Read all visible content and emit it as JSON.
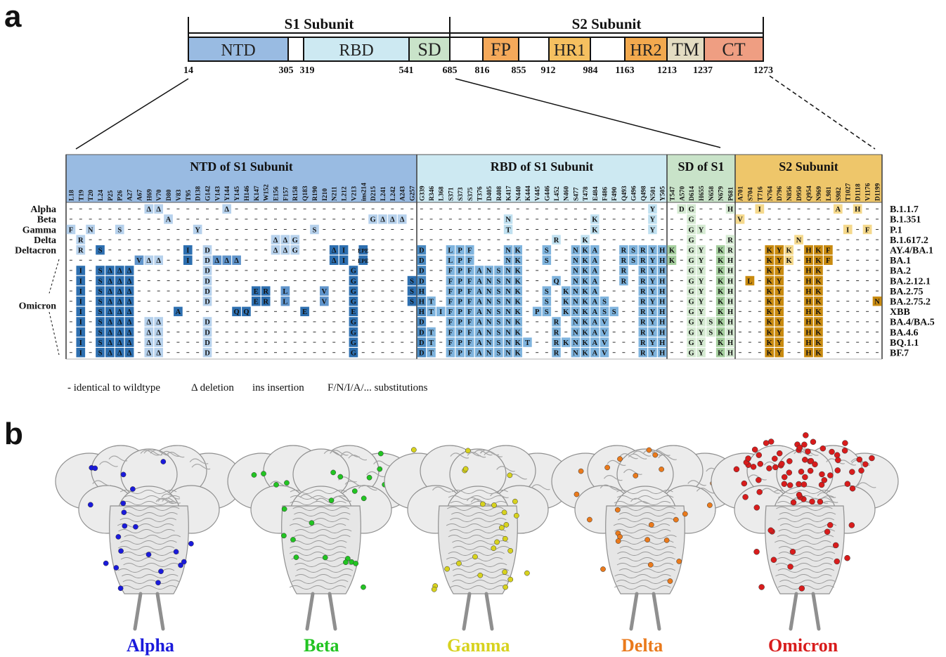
{
  "panel_a": {
    "letter": "a",
    "subunits": [
      {
        "label": "S1 Subunit"
      },
      {
        "label": "S2 Subunit"
      }
    ],
    "domains": [
      {
        "label": "NTD",
        "start": 14,
        "end": 305,
        "color": "#99bbe2"
      },
      {
        "label": "RBD",
        "start": 319,
        "end": 541,
        "color": "#cde9f2"
      },
      {
        "label": "SD",
        "start": 541,
        "end": 685,
        "color": "#c9e3c9"
      },
      {
        "label": "FP",
        "start": 816,
        "end": 855,
        "color": "#f5a95a"
      },
      {
        "label": "HR1",
        "start": 912,
        "end": 984,
        "color": "#f5c060"
      },
      {
        "label": "HR2",
        "start": 1163,
        "end": 1213,
        "color": "#f2a94e"
      },
      {
        "label": "TM",
        "start": 1213,
        "end": 1237,
        "color": "#e3dcc2"
      },
      {
        "label": "CT",
        "start": 1237,
        "end": 1273,
        "color": "#ef9e82"
      }
    ],
    "ticks": [
      "14",
      "305",
      "319",
      "541",
      "685",
      "816",
      "855",
      "912",
      "984",
      "1163",
      "1213",
      "1237",
      "1273"
    ],
    "table_sections": [
      {
        "label": "NTD of S1 Subunit",
        "color": "#99bbe2",
        "strong": "#2d6fb0",
        "medium": "#5f94cb",
        "light": "#b6d1ec"
      },
      {
        "label": "RBD of S1 Subunit",
        "color": "#cde9f2",
        "strong": "#4a8ac2",
        "medium": "#7fb4de",
        "light": "#bfe0f0"
      },
      {
        "label": "SD of S1",
        "color": "#c9e3c9",
        "strong": "#71b46a",
        "medium": "#a5cf9e",
        "light": "#d5ead2"
      },
      {
        "label": "S2 Subunit",
        "color": "#eec66a",
        "strong": "#c98b10",
        "medium": "#dfa830",
        "light": "#f5d98c"
      }
    ],
    "positions": {
      "ntd": [
        "L18",
        "T19",
        "T20",
        "L24",
        "P25",
        "P26",
        "A27",
        "A67",
        "H69",
        "V70",
        "D80",
        "V83",
        "T95",
        "D138",
        "G142",
        "V143",
        "Y144",
        "Y145",
        "H146",
        "K147",
        "W152",
        "E156",
        "F157",
        "R158",
        "Q183",
        "R190",
        "I210",
        "N211",
        "L212",
        "V213",
        "ins214",
        "D215",
        "L241",
        "L242",
        "A243",
        "G257"
      ],
      "rbd": [
        "G339",
        "R346",
        "L368",
        "S371",
        "S373",
        "S375",
        "T376",
        "D405",
        "R408",
        "K417",
        "N440",
        "K444",
        "V445",
        "G446",
        "L452",
        "N460",
        "S477",
        "T478",
        "E484",
        "F486",
        "F490",
        "Q493",
        "G496",
        "Q498",
        "N501",
        "Y505"
      ],
      "sd": [
        "T547",
        "A570",
        "D614",
        "H655",
        "N658",
        "N679",
        "P681"
      ],
      "s2": [
        "A701",
        "S704",
        "T716",
        "N764",
        "D796",
        "N856",
        "D950",
        "Q954",
        "N969",
        "L981",
        "S982",
        "T1027",
        "D1118",
        "V1176",
        "D1199"
      ]
    },
    "groups": [
      {
        "label": "Alpha",
        "row": 0
      },
      {
        "label": "Beta",
        "row": 1
      },
      {
        "label": "Gamma",
        "row": 2
      },
      {
        "label": "Delta",
        "row": 3
      },
      {
        "label": "Deltacron",
        "row": 4
      },
      {
        "label": "Omicron",
        "row": 9
      }
    ],
    "variants": [
      {
        "name": "B.1.1.7",
        "muts": [
          "H69:Δ:l",
          "V70:Δ:l",
          "Y144:Δ:l",
          "N501:Y:l",
          "A570:D:l",
          "D614:G:l",
          "P681:H:l",
          "T716:I:l",
          "S982:A:l",
          "D1118:H:l"
        ]
      },
      {
        "name": "B.1.351",
        "muts": [
          "D80:A:l",
          "D215:G:l",
          "L241:Δ:l",
          "L242:Δ:l",
          "A243:Δ:l",
          "K417:N:l",
          "E484:K:l",
          "N501:Y:l",
          "D614:G:l",
          "A701:V:l"
        ]
      },
      {
        "name": "P.1",
        "muts": [
          "L18:F:l",
          "T20:N:l",
          "P26:S:l",
          "D138:Y:l",
          "R190:S:l",
          "K417:T:l",
          "E484:K:l",
          "N501:Y:l",
          "D614:G:l",
          "H655:Y:l",
          "T1027:I:l",
          "V1176:F:l"
        ]
      },
      {
        "name": "B.1.617.2",
        "muts": [
          "T19:R:l",
          "E156:Δ:l",
          "F157:Δ:l",
          "R158:G:l",
          "L452:R:l",
          "T478:K:l",
          "D614:G:l",
          "P681:R:l",
          "D950:N:l"
        ]
      },
      {
        "name": "AY.4/BA.1",
        "muts": [
          "T19:R:l",
          "L24:S:s",
          "T95:I:s",
          "G142:D:l",
          "E156:Δ:l",
          "F157:Δ:l",
          "R158:G:l",
          "N211:Δ:s",
          "L212:I:s",
          "ins214:EPE:s",
          "G339:D:s",
          "S371:L:m",
          "S373:P:m",
          "S375:F:m",
          "K417:N:m",
          "N440:K:m",
          "G446:S:m",
          "S477:N:m",
          "T478:K:m",
          "E484:A:m",
          "Q493:R:m",
          "G496:S:m",
          "Q498:R:m",
          "N501:Y:m",
          "Y505:H:m",
          "T547:K:m",
          "D614:G:l",
          "H655:Y:l",
          "N679:K:m",
          "P681:R:l",
          "N764:K:s",
          "D796:Y:s",
          "N856:K:l",
          "Q954:H:s",
          "N969:K:s",
          "L981:F:s"
        ]
      },
      {
        "name": "BA.1",
        "muts": [
          "A67:V:m",
          "H69:Δ:l",
          "V70:Δ:l",
          "T95:I:s",
          "G142:D:l",
          "V143:Δ:m",
          "Y144:Δ:m",
          "Y145:Δ:m",
          "N211:Δ:s",
          "L212:I:s",
          "ins214:EPE:s",
          "G339:D:s",
          "S371:L:m",
          "S373:P:m",
          "S375:F:m",
          "K417:N:m",
          "N440:K:m",
          "G446:S:m",
          "S477:N:m",
          "T478:K:m",
          "E484:A:m",
          "Q493:R:m",
          "G496:S:m",
          "Q498:R:m",
          "N501:Y:m",
          "Y505:H:m",
          "T547:K:m",
          "D614:G:l",
          "H655:Y:l",
          "N679:K:m",
          "P681:H:l",
          "N764:K:s",
          "D796:Y:s",
          "N856:K:l",
          "Q954:H:s",
          "N969:K:s",
          "L981:F:s"
        ]
      },
      {
        "name": "BA.2",
        "muts": [
          "T19:I:s",
          "L24:S:s",
          "P25:Δ:s",
          "P26:Δ:s",
          "A27:Δ:s",
          "G142:D:l",
          "V213:G:s",
          "G339:D:s",
          "S371:F:m",
          "S373:P:m",
          "S375:F:m",
          "T376:A:m",
          "D405:N:m",
          "R408:S:m",
          "K417:N:m",
          "N440:K:m",
          "S477:N:m",
          "T478:K:m",
          "E484:A:m",
          "Q493:R:m",
          "Q498:R:m",
          "N501:Y:m",
          "Y505:H:m",
          "D614:G:l",
          "H655:Y:l",
          "N679:K:m",
          "P681:H:l",
          "N764:K:s",
          "D796:Y:s",
          "Q954:H:s",
          "N969:K:s"
        ]
      },
      {
        "name": "BA.2.12.1",
        "muts": [
          "T19:I:s",
          "L24:S:s",
          "P25:Δ:s",
          "P26:Δ:s",
          "A27:Δ:s",
          "G142:D:l",
          "V213:G:s",
          "G257:S:s",
          "G339:D:s",
          "S371:F:m",
          "S373:P:m",
          "S375:F:m",
          "T376:A:m",
          "D405:N:m",
          "R408:S:m",
          "K417:N:m",
          "N440:K:m",
          "L452:Q:m",
          "S477:N:m",
          "T478:K:m",
          "E484:A:m",
          "Q493:R:m",
          "Q498:R:m",
          "N501:Y:m",
          "Y505:H:m",
          "D614:G:l",
          "H655:Y:l",
          "N679:K:m",
          "P681:H:l",
          "S704:L:s",
          "N764:K:s",
          "D796:Y:s",
          "Q954:H:s",
          "N969:K:s"
        ]
      },
      {
        "name": "BA.2.75",
        "muts": [
          "T19:I:s",
          "L24:S:s",
          "P25:Δ:s",
          "P26:Δ:s",
          "A27:Δ:s",
          "G142:D:l",
          "K147:E:s",
          "W152:R:s",
          "F157:L:m",
          "I210:V:m",
          "V213:G:s",
          "G257:S:s",
          "G339:H:s",
          "S371:F:m",
          "S373:P:m",
          "S375:F:m",
          "T376:A:m",
          "D405:N:m",
          "R408:S:m",
          "K417:N:m",
          "N440:K:m",
          "G446:S:m",
          "N460:K:m",
          "S477:N:m",
          "T478:K:m",
          "E484:A:m",
          "Q498:R:m",
          "N501:Y:m",
          "Y505:H:m",
          "D614:G:l",
          "H655:Y:l",
          "N679:K:m",
          "P681:H:l",
          "N764:K:s",
          "D796:Y:s",
          "Q954:H:s",
          "N969:K:s"
        ]
      },
      {
        "name": "BA.2.75.2",
        "muts": [
          "T19:I:s",
          "L24:S:s",
          "P25:Δ:s",
          "P26:Δ:s",
          "A27:Δ:s",
          "G142:D:l",
          "K147:E:s",
          "W152:R:s",
          "F157:L:m",
          "I210:V:m",
          "V213:G:s",
          "G257:S:s",
          "G339:H:s",
          "R346:T:m",
          "S371:F:m",
          "S373:P:m",
          "S375:F:m",
          "T376:A:m",
          "D405:N:m",
          "R408:S:m",
          "K417:N:m",
          "N440:K:m",
          "G446:S:m",
          "N460:K:m",
          "S477:N:m",
          "T478:K:m",
          "E484:A:m",
          "F486:S:m",
          "Q498:R:m",
          "N501:Y:m",
          "Y505:H:m",
          "D614:G:l",
          "H655:Y:l",
          "N679:K:m",
          "P681:H:l",
          "N764:K:s",
          "D796:Y:s",
          "Q954:H:s",
          "N969:K:s",
          "D1199:N:s"
        ]
      },
      {
        "name": "XBB",
        "muts": [
          "T19:I:s",
          "L24:S:s",
          "P25:Δ:s",
          "P26:Δ:s",
          "A27:Δ:s",
          "V83:A:s",
          "Y145:Q:s",
          "H146:Q:s",
          "Q183:E:s",
          "V213:E:s",
          "G339:H:s",
          "R346:T:m",
          "L368:I:m",
          "S371:F:m",
          "S373:P:m",
          "S375:F:m",
          "T376:A:m",
          "D405:N:m",
          "R408:S:m",
          "K417:N:m",
          "N440:K:m",
          "V445:P:m",
          "G446:S:m",
          "N460:K:m",
          "S477:N:m",
          "T478:K:m",
          "E484:A:m",
          "F486:S:m",
          "F490:S:m",
          "Q498:R:m",
          "N501:Y:m",
          "Y505:H:m",
          "D614:G:l",
          "H655:Y:l",
          "N679:K:m",
          "P681:H:l",
          "N764:K:s",
          "D796:Y:s",
          "Q954:H:s",
          "N969:K:s"
        ]
      },
      {
        "name": "BA.4/BA.5",
        "muts": [
          "T19:I:s",
          "L24:S:s",
          "P25:Δ:s",
          "P26:Δ:s",
          "A27:Δ:s",
          "H69:Δ:l",
          "V70:Δ:l",
          "G142:D:l",
          "V213:G:s",
          "G339:D:s",
          "S371:F:m",
          "S373:P:m",
          "S375:F:m",
          "T376:A:m",
          "D405:N:m",
          "R408:S:m",
          "K417:N:m",
          "N440:K:m",
          "L452:R:m",
          "S477:N:m",
          "T478:K:m",
          "E484:A:m",
          "F486:V:m",
          "Q498:R:m",
          "N501:Y:m",
          "Y505:H:m",
          "D614:G:l",
          "H655:Y:l",
          "N658:S:l",
          "N679:K:m",
          "P681:H:l",
          "N764:K:s",
          "D796:Y:s",
          "Q954:H:s",
          "N969:K:s"
        ]
      },
      {
        "name": "BA.4.6",
        "muts": [
          "T19:I:s",
          "L24:S:s",
          "P25:Δ:s",
          "P26:Δ:s",
          "A27:Δ:s",
          "H69:Δ:l",
          "V70:Δ:l",
          "G142:D:l",
          "V213:G:s",
          "G339:D:s",
          "R346:T:m",
          "S371:F:m",
          "S373:P:m",
          "S375:F:m",
          "T376:A:m",
          "D405:N:m",
          "R408:S:m",
          "K417:N:m",
          "N440:K:m",
          "L452:R:m",
          "S477:N:m",
          "T478:K:m",
          "E484:A:m",
          "F486:V:m",
          "Q498:R:m",
          "N501:Y:m",
          "Y505:H:m",
          "D614:G:l",
          "H655:Y:l",
          "N658:S:l",
          "N679:K:m",
          "P681:H:l",
          "N764:K:s",
          "D796:Y:s",
          "Q954:H:s",
          "N969:K:s"
        ]
      },
      {
        "name": "BQ.1.1",
        "muts": [
          "T19:I:s",
          "L24:S:s",
          "P25:Δ:s",
          "P26:Δ:s",
          "A27:Δ:s",
          "H69:Δ:l",
          "V70:Δ:l",
          "G142:D:l",
          "V213:G:s",
          "G339:D:s",
          "R346:T:m",
          "S371:F:m",
          "S373:P:m",
          "S375:F:m",
          "T376:A:m",
          "D405:N:m",
          "R408:S:m",
          "K417:N:m",
          "N440:K:m",
          "K444:T:m",
          "L452:R:m",
          "N460:K:m",
          "S477:N:m",
          "T478:K:m",
          "E484:A:m",
          "F486:V:m",
          "Q498:R:m",
          "N501:Y:m",
          "Y505:H:m",
          "D614:G:l",
          "H655:Y:l",
          "N679:K:m",
          "P681:H:l",
          "N764:K:s",
          "D796:Y:s",
          "Q954:H:s",
          "N969:K:s"
        ]
      },
      {
        "name": "BF.7",
        "muts": [
          "T19:I:s",
          "L24:S:s",
          "P25:Δ:s",
          "P26:Δ:s",
          "A27:Δ:s",
          "H69:Δ:l",
          "V70:Δ:l",
          "G142:D:l",
          "V213:G:s",
          "G339:D:s",
          "R346:T:m",
          "S371:F:m",
          "S373:P:m",
          "S375:F:m",
          "T376:A:m",
          "D405:N:m",
          "R408:S:m",
          "K417:N:m",
          "N440:K:m",
          "L452:R:m",
          "S477:N:m",
          "T478:K:m",
          "E484:A:m",
          "F486:V:m",
          "Q498:R:m",
          "N501:Y:m",
          "Y505:H:m",
          "D614:G:l",
          "H655:Y:l",
          "N679:K:m",
          "P681:H:l",
          "N764:K:s",
          "D796:Y:s",
          "Q954:H:s",
          "N969:K:s"
        ]
      }
    ],
    "legend": [
      {
        "symbol": "-",
        "text": "identical to wildtype"
      },
      {
        "symbol": "Δ",
        "text": "deletion"
      },
      {
        "symbol": "ins",
        "text": "insertion"
      },
      {
        "symbol": "F/N/I/A/...",
        "text": "substitutions"
      }
    ]
  },
  "panel_b": {
    "letter": "b",
    "structures": [
      {
        "label": "Alpha",
        "color": "#1a1adb"
      },
      {
        "label": "Beta",
        "color": "#22c422"
      },
      {
        "label": "Gamma",
        "color": "#d7d21e"
      },
      {
        "label": "Delta",
        "color": "#ea7a1c"
      },
      {
        "label": "Omicron",
        "color": "#d81c1c"
      }
    ]
  }
}
